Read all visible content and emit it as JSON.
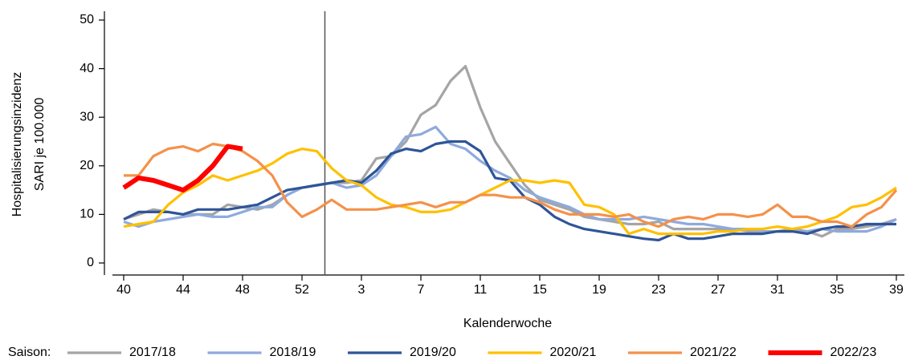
{
  "chart_data": {
    "type": "line",
    "xlabel": "Kalenderwoche",
    "ylabel": [
      "Hospitalisierungsinzidenz",
      "SARI je 100.000"
    ],
    "legend_title": "Saison:",
    "legend": "bottom",
    "categories": [
      "40",
      null,
      null,
      null,
      "44",
      null,
      null,
      null,
      "48",
      null,
      null,
      null,
      "52",
      null,
      null,
      null,
      "3",
      null,
      null,
      null,
      "7",
      null,
      null,
      null,
      "11",
      null,
      null,
      null,
      "15",
      null,
      null,
      null,
      "19",
      null,
      null,
      null,
      "23",
      null,
      null,
      null,
      "27",
      null,
      null,
      null,
      "31",
      null,
      null,
      null,
      "35",
      null,
      null,
      null,
      "39"
    ],
    "ylim": [
      0,
      50
    ],
    "yticks": [
      0,
      10,
      20,
      30,
      40,
      50
    ],
    "series": [
      {
        "name": "2017/18",
        "color": "#a5a5a5",
        "values": [
          9,
          10,
          11,
          10.5,
          10,
          10,
          10,
          12,
          11.5,
          11,
          12,
          14,
          15.5,
          16,
          16.5,
          16.5,
          17,
          21.5,
          22,
          25,
          30.5,
          32.5,
          37.5,
          40.5,
          32,
          25,
          20.5,
          16,
          13,
          12,
          11,
          9.5,
          9,
          8.5,
          8,
          8,
          8.5,
          7,
          7,
          7,
          7,
          7,
          6.5,
          6.5,
          6.5,
          7,
          6.5,
          5.5,
          7,
          7,
          7.5,
          8,
          9
        ]
      },
      {
        "name": "2018/19",
        "color": "#8faadc",
        "values": [
          8.5,
          7.5,
          8.5,
          9,
          9.5,
          10,
          9.5,
          9.5,
          10.5,
          11.5,
          11.5,
          14,
          15.5,
          16,
          16.5,
          15.5,
          16,
          18,
          22,
          26,
          26.5,
          28,
          24.5,
          23.5,
          21,
          19,
          17.5,
          15,
          13.5,
          12.5,
          11.5,
          10,
          9,
          9,
          9,
          9.5,
          9,
          8.5,
          8,
          8,
          7.5,
          7,
          7,
          6.5,
          6.5,
          6.5,
          6.5,
          7,
          6.5,
          6.5,
          6.5,
          7.5,
          9
        ]
      },
      {
        "name": "2019/20",
        "color": "#2f5597",
        "values": [
          9,
          10.5,
          10.5,
          10.5,
          10,
          11,
          11,
          11,
          11.5,
          12,
          13.5,
          15,
          15.5,
          16,
          16.5,
          17,
          16.5,
          19,
          22.5,
          23.5,
          23,
          24.5,
          25,
          25,
          23,
          17.5,
          17,
          13.5,
          12,
          9.5,
          8,
          7,
          6.5,
          6,
          5.5,
          5,
          4.7,
          6,
          5,
          5,
          5.5,
          6,
          6,
          6,
          6.5,
          6.5,
          6,
          7,
          7.5,
          7.5,
          8,
          8,
          8
        ]
      },
      {
        "name": "2020/21",
        "color": "#ffc000",
        "values": [
          7.5,
          8,
          8.5,
          12,
          14.5,
          16,
          18,
          17,
          18,
          19,
          20.5,
          22.5,
          23.5,
          23,
          19.5,
          17,
          16,
          13.5,
          12,
          11.5,
          10.5,
          10.5,
          11,
          12.5,
          14,
          15.5,
          17,
          17,
          16.5,
          17,
          16.5,
          12,
          11.5,
          10,
          6,
          7,
          6,
          6,
          6,
          6,
          6.5,
          6.5,
          7,
          7,
          7.5,
          7,
          7.5,
          8.5,
          9.5,
          11.5,
          12,
          13.5,
          15.5
        ]
      },
      {
        "name": "2021/22",
        "color": "#f4914a",
        "values": [
          18,
          18,
          22,
          23.5,
          24,
          23,
          24.5,
          24,
          23,
          21,
          18,
          12.5,
          9.5,
          11,
          13,
          11,
          11,
          11,
          11.5,
          12,
          12.5,
          11.5,
          12.5,
          12.5,
          14,
          14,
          13.5,
          13.5,
          12.5,
          11,
          10,
          10,
          10,
          9.5,
          10,
          8.5,
          7.5,
          9,
          9.5,
          9,
          10,
          10,
          9.5,
          10,
          12,
          9.5,
          9.5,
          8.5,
          8.5,
          7.5,
          10,
          11.5,
          15
        ]
      },
      {
        "name": "2022/23",
        "color": "#ff0000",
        "values": [
          15.5,
          17.5,
          17,
          16,
          15,
          17,
          20,
          24,
          23.5,
          null,
          null,
          null,
          null,
          null,
          null,
          null,
          null,
          null,
          null,
          null,
          null,
          null,
          null,
          null,
          null,
          null,
          null,
          null,
          null,
          null,
          null,
          null,
          null,
          null,
          null,
          null,
          null,
          null,
          null,
          null,
          null,
          null,
          null,
          null,
          null,
          null,
          null,
          null,
          null,
          null,
          null,
          null,
          null
        ]
      }
    ]
  }
}
